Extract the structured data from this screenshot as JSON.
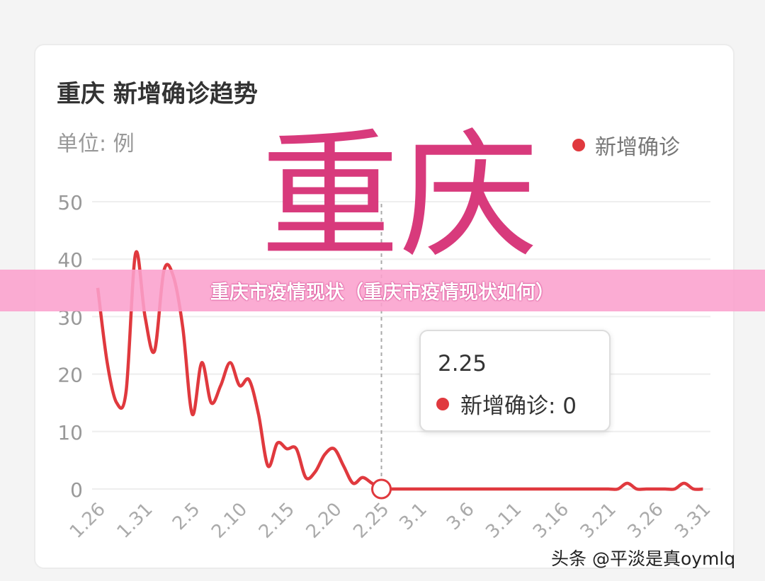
{
  "chart_data": {
    "type": "line",
    "title": "重庆 新增确诊趋势",
    "unit_label": "单位: 例",
    "legend": [
      "新增确诊"
    ],
    "legend_placement": "top-right",
    "ylim": [
      0,
      50
    ],
    "yticks": [
      0,
      10,
      20,
      30,
      40,
      50
    ],
    "grid": true,
    "color": "#e0393e",
    "x": [
      "1.26",
      "1.27",
      "1.28",
      "1.29",
      "1.30",
      "1.31",
      "2.1",
      "2.2",
      "2.3",
      "2.4",
      "2.5",
      "2.6",
      "2.7",
      "2.8",
      "2.9",
      "2.10",
      "2.11",
      "2.12",
      "2.13",
      "2.14",
      "2.15",
      "2.16",
      "2.17",
      "2.18",
      "2.19",
      "2.20",
      "2.21",
      "2.22",
      "2.23",
      "2.24",
      "2.25",
      "2.26",
      "2.27",
      "2.28",
      "3.1",
      "3.2",
      "3.3",
      "3.4",
      "3.5",
      "3.6",
      "3.7",
      "3.8",
      "3.9",
      "3.10",
      "3.11",
      "3.12",
      "3.13",
      "3.14",
      "3.15",
      "3.16",
      "3.17",
      "3.18",
      "3.19",
      "3.20",
      "3.21",
      "3.22",
      "3.23",
      "3.24",
      "3.25",
      "3.26",
      "3.27",
      "3.28",
      "3.29",
      "3.30",
      "3.31"
    ],
    "xticks": [
      "1.26",
      "1.31",
      "2.5",
      "2.10",
      "2.15",
      "2.20",
      "2.25",
      "3.1",
      "3.6",
      "3.11",
      "3.16",
      "3.21",
      "3.26",
      "3.31"
    ],
    "series": [
      {
        "name": "新增确诊",
        "values": [
          35,
          22,
          15,
          17,
          41,
          30,
          24,
          38,
          37,
          28,
          13,
          22,
          15,
          18,
          22,
          18,
          19,
          13,
          4,
          8,
          7,
          7,
          2,
          3,
          6,
          7,
          4,
          1,
          2,
          1,
          0,
          0,
          0,
          0,
          0,
          0,
          0,
          0,
          0,
          0,
          0,
          0,
          0,
          0,
          0,
          0,
          0,
          0,
          0,
          0,
          0,
          0,
          0,
          0,
          0,
          0,
          1,
          0,
          0,
          0,
          0,
          0,
          1,
          0,
          0
        ]
      }
    ],
    "tooltip": {
      "date": "2.25",
      "text": "新增确诊: 0"
    }
  },
  "watermark": "重庆",
  "banner": "重庆市疫情现状（重庆市疫情现状如何）",
  "credit": "头条 @平淡是真oymlq"
}
